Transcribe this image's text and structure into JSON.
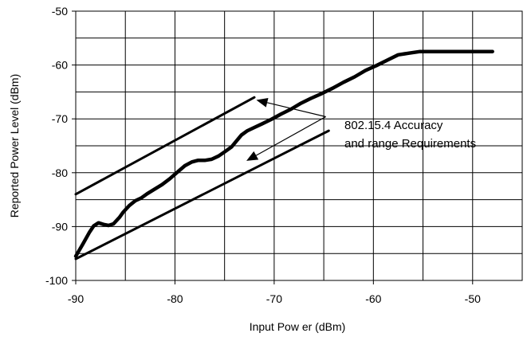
{
  "chart_data": {
    "type": "line",
    "title": "",
    "xlabel": "Input Pow er (dBm)",
    "ylabel": "Reported Power Level (dBm)",
    "xlim": [
      -90,
      -45
    ],
    "ylim": [
      -100,
      -50
    ],
    "x_ticks": [
      -90,
      -80,
      -70,
      -60,
      -50
    ],
    "y_ticks": [
      -50,
      -60,
      -70,
      -80,
      -90,
      -100
    ],
    "x_tick_labels": [
      "-90",
      "-80",
      "-70",
      "-60",
      "-50"
    ],
    "y_tick_labels": [
      "-50",
      "-60",
      "-70",
      "-80",
      "-90",
      "-100"
    ],
    "x_grid_step": 5,
    "y_grid_step": 5,
    "grid": true,
    "legend": "none",
    "series": [
      {
        "x": [
          -90,
          -89.3,
          -88.6,
          -88.2,
          -87.7,
          -87.2,
          -86.7,
          -86.2,
          -85.6,
          -85.2,
          -84.6,
          -84.0,
          -83.4,
          -82.8,
          -82.1,
          -81.3,
          -80.5,
          -79.7,
          -79.0,
          -78.3,
          -77.7,
          -77.0,
          -76.3,
          -75.6,
          -74.9,
          -74.3,
          -73.8,
          -73.3,
          -72.7,
          -72.0,
          -71.2,
          -70.3,
          -69.3,
          -68.3,
          -67.3,
          -66.3,
          -65.2,
          -64.1,
          -63.0,
          -61.9,
          -60.8,
          -59.7,
          -58.6,
          -57.5,
          -56.4,
          -55.3,
          -54.2,
          -53.1,
          -52.0,
          -50.9,
          -49.8,
          -48.7,
          -48.0
        ],
        "y": [
          -95.5,
          -93.3,
          -91.0,
          -89.9,
          -89.3,
          -89.6,
          -89.8,
          -89.5,
          -88.3,
          -87.3,
          -86.1,
          -85.2,
          -84.7,
          -83.9,
          -83.1,
          -82.2,
          -81.1,
          -79.8,
          -78.7,
          -78.0,
          -77.7,
          -77.7,
          -77.5,
          -76.9,
          -76.0,
          -75.2,
          -74.1,
          -73.0,
          -72.2,
          -71.6,
          -70.9,
          -70.1,
          -69.1,
          -68.2,
          -67.1,
          -66.2,
          -65.3,
          -64.3,
          -63.2,
          -62.2,
          -61.0,
          -60.1,
          -59.1,
          -58.1,
          -57.8,
          -57.5,
          -57.5,
          -57.5,
          -57.5,
          -57.5,
          -57.5,
          -57.5,
          -57.5
        ]
      },
      {
        "x": [
          -90,
          -72
        ],
        "y": [
          -84,
          -66
        ]
      },
      {
        "x": [
          -90,
          -64.5
        ],
        "y": [
          -96,
          -72.2
        ]
      }
    ],
    "annotation": {
      "lines": [
        "802.15.4 Accuracy",
        "and range Requirements"
      ],
      "arrow_targets": [
        {
          "x": -71.8,
          "y": -66.5
        },
        {
          "x": -72.8,
          "y": -77.8
        }
      ],
      "arrow_origin": {
        "x": -64.8,
        "y": -69.6
      }
    }
  }
}
